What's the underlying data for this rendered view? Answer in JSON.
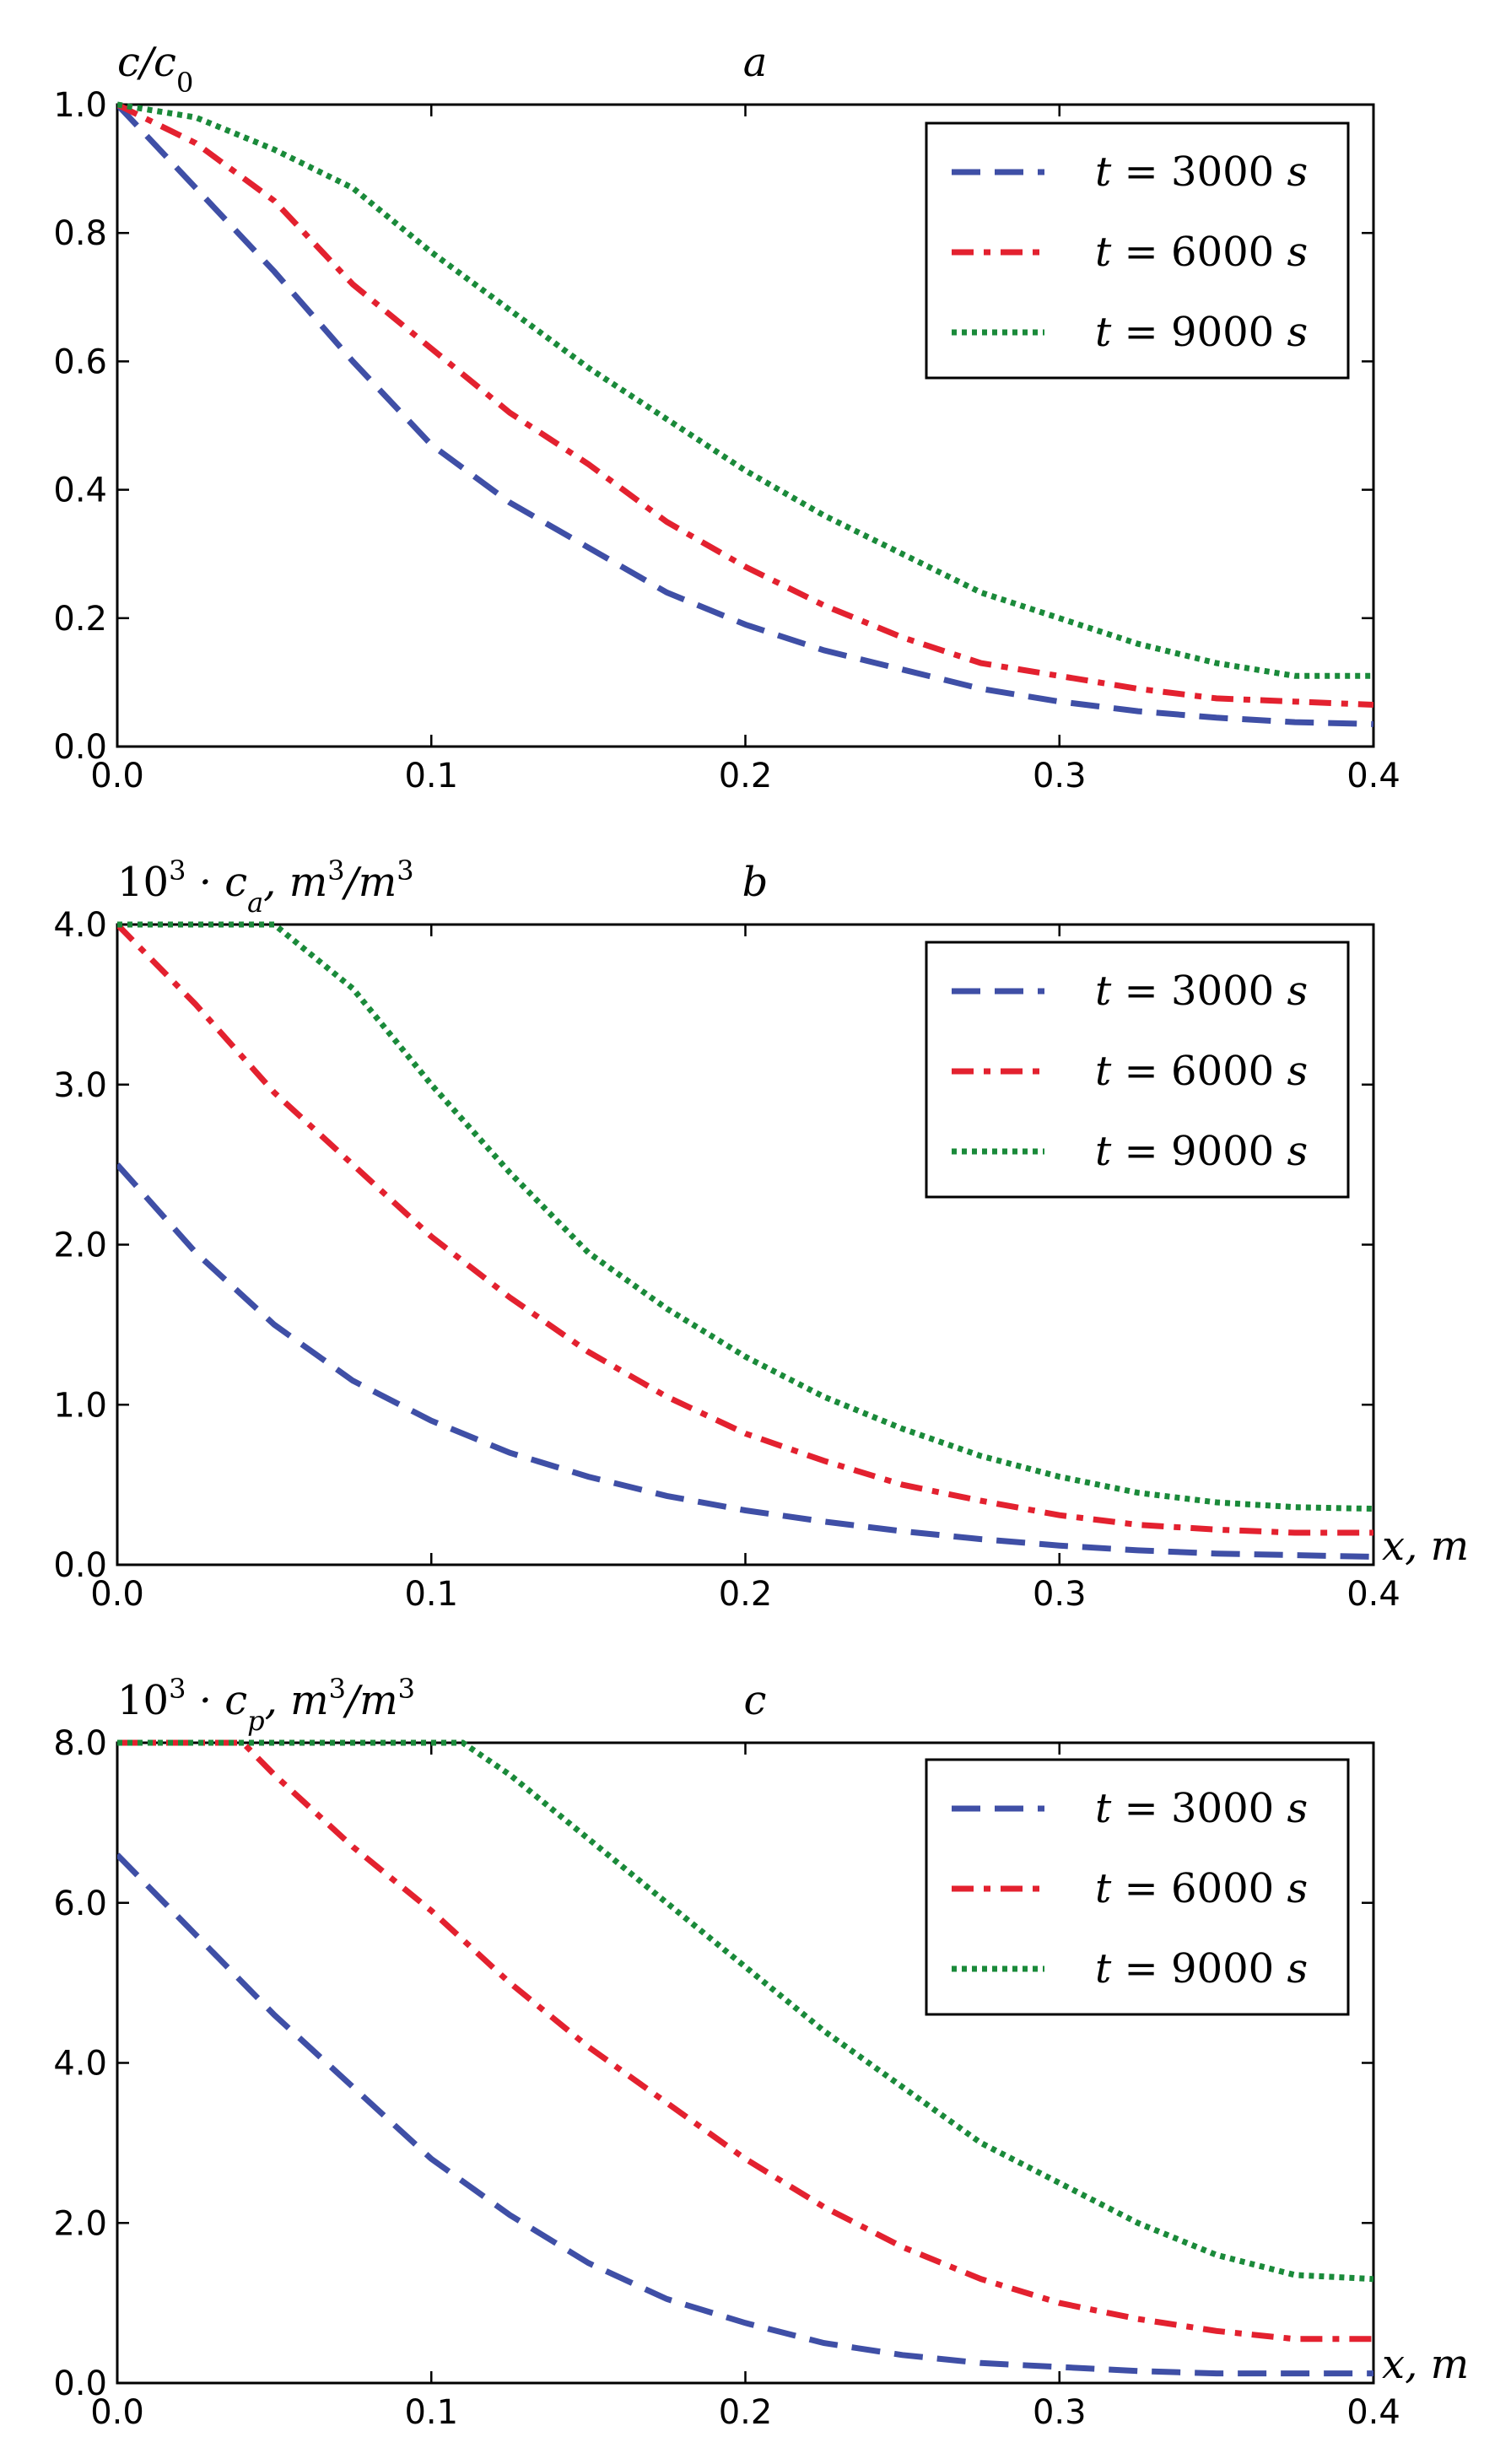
{
  "colors": {
    "t3000": "#3f4fa6",
    "t6000": "#e3212f",
    "t9000": "#1a8a3a"
  },
  "chart_data": [
    {
      "type": "line",
      "panel_label": "a",
      "ylabel": "c/c0",
      "xlabel": "",
      "xlim": [
        0.0,
        0.4
      ],
      "ylim": [
        0.0,
        1.0
      ],
      "x_ticks": [
        0.0,
        0.1,
        0.2,
        0.3,
        0.4
      ],
      "x_tick_labels": [
        "0.0",
        "0.1",
        "0.2",
        "0.3",
        "0.4"
      ],
      "y_ticks": [
        0.0,
        0.2,
        0.4,
        0.6,
        0.8,
        1.0
      ],
      "y_tick_labels": [
        "0.0",
        "0.2",
        "0.4",
        "0.6",
        "0.8",
        "1.0"
      ],
      "legend": "top-right",
      "grid": false,
      "series": [
        {
          "name": "t = 3000 s",
          "key": "t3000",
          "style": "dashed",
          "x": [
            0,
            0.025,
            0.05,
            0.075,
            0.1,
            0.125,
            0.15,
            0.175,
            0.2,
            0.225,
            0.25,
            0.275,
            0.3,
            0.325,
            0.35,
            0.375,
            0.4
          ],
          "y": [
            1.0,
            0.87,
            0.74,
            0.6,
            0.47,
            0.38,
            0.31,
            0.24,
            0.19,
            0.15,
            0.12,
            0.09,
            0.07,
            0.055,
            0.045,
            0.038,
            0.035
          ]
        },
        {
          "name": "t = 6000 s",
          "key": "t6000",
          "style": "dashdot",
          "x": [
            0,
            0.025,
            0.05,
            0.075,
            0.1,
            0.125,
            0.15,
            0.175,
            0.2,
            0.225,
            0.25,
            0.275,
            0.3,
            0.325,
            0.35,
            0.375,
            0.4
          ],
          "y": [
            1.0,
            0.94,
            0.85,
            0.72,
            0.62,
            0.52,
            0.44,
            0.35,
            0.28,
            0.22,
            0.17,
            0.13,
            0.11,
            0.09,
            0.075,
            0.07,
            0.065
          ]
        },
        {
          "name": "t = 9000 s",
          "key": "t9000",
          "style": "dotted",
          "x": [
            0,
            0.025,
            0.05,
            0.075,
            0.1,
            0.125,
            0.15,
            0.175,
            0.2,
            0.225,
            0.25,
            0.275,
            0.3,
            0.325,
            0.35,
            0.375,
            0.4
          ],
          "y": [
            1.0,
            0.98,
            0.93,
            0.87,
            0.77,
            0.68,
            0.59,
            0.51,
            0.43,
            0.36,
            0.3,
            0.24,
            0.2,
            0.16,
            0.13,
            0.11,
            0.11
          ]
        }
      ]
    },
    {
      "type": "line",
      "panel_label": "b",
      "ylabel": "10^3 · c_a, m^3/m^3",
      "xlabel": "x, m",
      "xlim": [
        0.0,
        0.4
      ],
      "ylim": [
        0.0,
        4.0
      ],
      "x_ticks": [
        0.0,
        0.1,
        0.2,
        0.3,
        0.4
      ],
      "x_tick_labels": [
        "0.0",
        "0.1",
        "0.2",
        "0.3",
        "0.4"
      ],
      "y_ticks": [
        0.0,
        1.0,
        2.0,
        3.0,
        4.0
      ],
      "y_tick_labels": [
        "0.0",
        "1.0",
        "2.0",
        "3.0",
        "4.0"
      ],
      "legend": "top-right",
      "grid": false,
      "series": [
        {
          "name": "t = 3000 s",
          "key": "t3000",
          "style": "dashed",
          "x": [
            0,
            0.025,
            0.05,
            0.075,
            0.1,
            0.125,
            0.15,
            0.175,
            0.2,
            0.225,
            0.25,
            0.275,
            0.3,
            0.325,
            0.35,
            0.375,
            0.4
          ],
          "y": [
            2.5,
            1.95,
            1.5,
            1.15,
            0.9,
            0.7,
            0.55,
            0.43,
            0.34,
            0.27,
            0.21,
            0.16,
            0.12,
            0.09,
            0.07,
            0.06,
            0.05
          ]
        },
        {
          "name": "t = 6000 s",
          "key": "t6000",
          "style": "dashdot",
          "x": [
            0,
            0.025,
            0.05,
            0.075,
            0.1,
            0.125,
            0.15,
            0.175,
            0.2,
            0.225,
            0.25,
            0.275,
            0.3,
            0.325,
            0.35,
            0.375,
            0.4
          ],
          "y": [
            4.0,
            3.5,
            2.95,
            2.5,
            2.05,
            1.67,
            1.33,
            1.05,
            0.82,
            0.65,
            0.5,
            0.4,
            0.31,
            0.25,
            0.22,
            0.2,
            0.2
          ]
        },
        {
          "name": "t = 9000 s",
          "key": "t9000",
          "style": "dotted",
          "x": [
            0,
            0.025,
            0.05,
            0.075,
            0.1,
            0.125,
            0.15,
            0.175,
            0.2,
            0.225,
            0.25,
            0.275,
            0.3,
            0.325,
            0.35,
            0.375,
            0.4
          ],
          "y": [
            4.0,
            4.0,
            4.0,
            3.6,
            3.0,
            2.45,
            1.95,
            1.6,
            1.3,
            1.05,
            0.85,
            0.68,
            0.55,
            0.45,
            0.39,
            0.36,
            0.35
          ]
        }
      ]
    },
    {
      "type": "line",
      "panel_label": "c",
      "ylabel": "10^3 · c_p, m^3/m^3",
      "xlabel": "x, m",
      "xlim": [
        0.0,
        0.4
      ],
      "ylim": [
        0.0,
        8.0
      ],
      "x_ticks": [
        0.0,
        0.1,
        0.2,
        0.3,
        0.4
      ],
      "x_tick_labels": [
        "0.0",
        "0.1",
        "0.2",
        "0.3",
        "0.4"
      ],
      "y_ticks": [
        0.0,
        2.0,
        4.0,
        6.0,
        8.0
      ],
      "y_tick_labels": [
        "0.0",
        "2.0",
        "4.0",
        "6.0",
        "8.0"
      ],
      "legend": "top-right",
      "grid": false,
      "series": [
        {
          "name": "t = 3000 s",
          "key": "t3000",
          "style": "dashed",
          "x": [
            0,
            0.025,
            0.05,
            0.075,
            0.1,
            0.125,
            0.15,
            0.175,
            0.2,
            0.225,
            0.25,
            0.275,
            0.3,
            0.325,
            0.35,
            0.375,
            0.4
          ],
          "y": [
            6.6,
            5.6,
            4.6,
            3.7,
            2.8,
            2.1,
            1.5,
            1.05,
            0.75,
            0.5,
            0.35,
            0.25,
            0.2,
            0.15,
            0.12,
            0.12,
            0.12
          ]
        },
        {
          "name": "t = 6000 s",
          "key": "t6000",
          "style": "dashdot",
          "x": [
            0,
            0.025,
            0.04,
            0.05,
            0.075,
            0.1,
            0.125,
            0.15,
            0.175,
            0.2,
            0.225,
            0.25,
            0.275,
            0.3,
            0.325,
            0.35,
            0.375,
            0.4
          ],
          "y": [
            8.0,
            8.0,
            8.0,
            7.6,
            6.7,
            5.9,
            5.0,
            4.2,
            3.5,
            2.8,
            2.2,
            1.7,
            1.3,
            1.0,
            0.8,
            0.65,
            0.55,
            0.55
          ]
        },
        {
          "name": "t = 9000 s",
          "key": "t9000",
          "style": "dotted",
          "x": [
            0,
            0.05,
            0.1,
            0.11,
            0.125,
            0.15,
            0.175,
            0.2,
            0.225,
            0.25,
            0.275,
            0.3,
            0.325,
            0.35,
            0.375,
            0.4
          ],
          "y": [
            8.0,
            8.0,
            8.0,
            8.0,
            7.6,
            6.8,
            6.0,
            5.2,
            4.4,
            3.7,
            3.0,
            2.5,
            2.0,
            1.6,
            1.35,
            1.3
          ]
        }
      ]
    }
  ]
}
